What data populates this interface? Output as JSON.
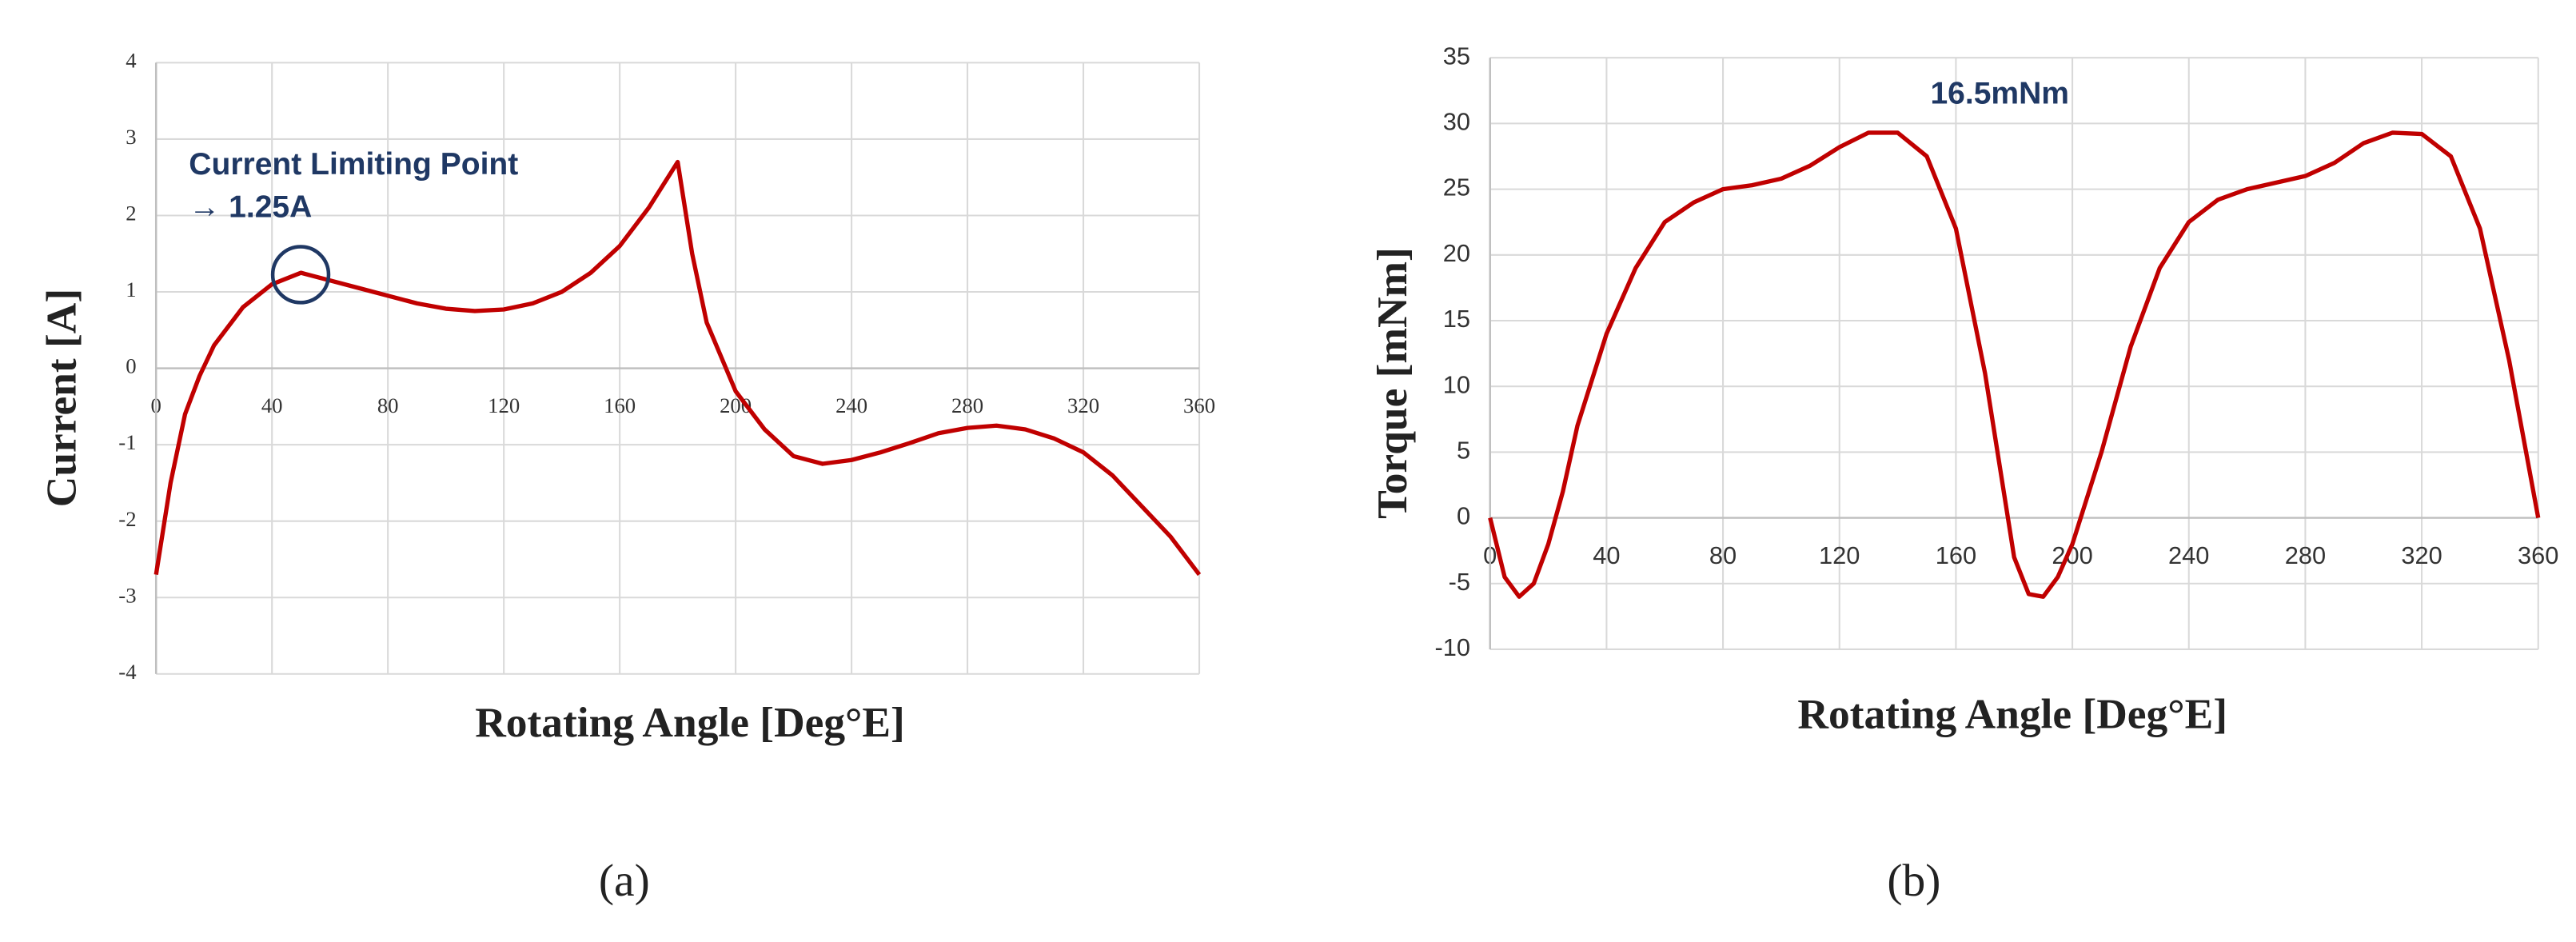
{
  "chart_data": [
    {
      "type": "line",
      "xlabel": "Rotating Angle [Deg°E]",
      "ylabel": "Current  [A]",
      "annotations": [
        "Current Limiting Point",
        "→ 1.25A"
      ],
      "caption": "(a)",
      "color": "#c00000",
      "grid": true,
      "xlim": [
        0,
        360
      ],
      "xticks": [
        0,
        40,
        80,
        120,
        160,
        200,
        240,
        280,
        320,
        360
      ],
      "ylim": [
        -4,
        4
      ],
      "yticks": [
        -4,
        -3,
        -2,
        -1,
        0,
        1,
        2,
        3,
        4
      ],
      "x": [
        0,
        5,
        10,
        15,
        20,
        30,
        40,
        50,
        60,
        70,
        80,
        90,
        100,
        110,
        120,
        130,
        140,
        150,
        160,
        170,
        180,
        185,
        190,
        200,
        210,
        220,
        230,
        240,
        250,
        260,
        270,
        280,
        290,
        300,
        310,
        320,
        330,
        340,
        350,
        360
      ],
      "values": [
        -2.7,
        -1.5,
        -0.6,
        -0.1,
        0.3,
        0.8,
        1.1,
        1.25,
        1.15,
        1.05,
        0.95,
        0.85,
        0.78,
        0.75,
        0.77,
        0.85,
        1.0,
        1.25,
        1.6,
        2.1,
        2.7,
        1.5,
        0.6,
        -0.3,
        -0.8,
        -1.15,
        -1.25,
        -1.2,
        -1.1,
        -0.98,
        -0.85,
        -0.78,
        -0.75,
        -0.8,
        -0.92,
        -1.1,
        -1.4,
        -1.8,
        -2.2,
        -2.7
      ]
    },
    {
      "type": "line",
      "xlabel": "Rotating Angle [Deg°E]",
      "ylabel": "Torque  [mNm]",
      "annotations": [
        "16.5mNm"
      ],
      "caption": "(b)",
      "color": "#c00000",
      "grid": true,
      "xlim": [
        0,
        360
      ],
      "xticks": [
        0,
        40,
        80,
        120,
        160,
        200,
        240,
        280,
        320,
        360
      ],
      "ylim": [
        -10,
        35
      ],
      "yticks": [
        -10,
        -5,
        0,
        5,
        10,
        15,
        20,
        25,
        30,
        35
      ],
      "x": [
        0,
        5,
        10,
        15,
        20,
        25,
        30,
        40,
        50,
        60,
        70,
        80,
        90,
        100,
        110,
        120,
        130,
        140,
        150,
        160,
        170,
        180,
        185,
        190,
        195,
        200,
        210,
        220,
        230,
        240,
        250,
        260,
        270,
        280,
        290,
        300,
        310,
        320,
        330,
        340,
        350,
        360
      ],
      "values": [
        0,
        -4.5,
        -6,
        -5,
        -2,
        2,
        7,
        14,
        19,
        22.5,
        24,
        25,
        25.3,
        25.8,
        26.8,
        28.2,
        29.3,
        29.3,
        27.5,
        22,
        11,
        -3,
        -5.8,
        -6,
        -4.5,
        -2,
        5,
        13,
        19,
        22.5,
        24.2,
        25,
        25.5,
        26,
        27,
        28.5,
        29.3,
        29.2,
        27.5,
        22,
        12,
        0
      ]
    }
  ]
}
